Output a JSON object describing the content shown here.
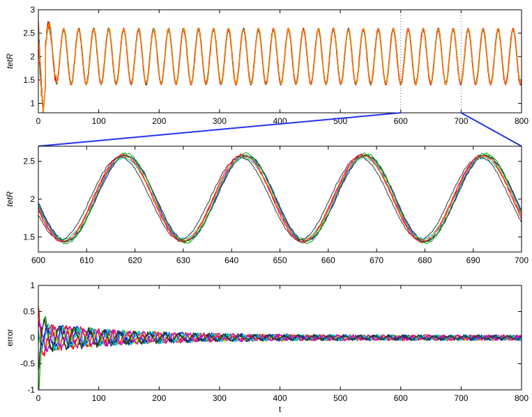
{
  "chart_data": [
    {
      "type": "line",
      "title": "",
      "xlabel": "",
      "ylabel": "tetR",
      "xlim": [
        0,
        800
      ],
      "ylim": [
        0.8,
        3
      ],
      "xticks": [
        "0",
        "100",
        "200",
        "300",
        "400",
        "500",
        "600",
        "700",
        "800"
      ],
      "yticks": [
        "1",
        "1.5",
        "2",
        "2.5",
        "3"
      ],
      "grid": false,
      "legend": "none",
      "description_of_series": "sustained oscillation, mean 2.0, amplitude ~0.58, period ~24.8, initial transient dip near t=0-10",
      "period": 24.8,
      "mean": 2.0,
      "amplitude": 0.58,
      "series_colors": [
        "#0000ff",
        "#00aa00",
        "#00cccc",
        "#cc00cc",
        "#cccc00",
        "#333333",
        "#ff0000",
        "#ff8800"
      ],
      "zoom_markers": [
        600,
        700
      ]
    },
    {
      "type": "line",
      "title": "",
      "xlabel": "",
      "ylabel": "tetR",
      "xlim": [
        600,
        700
      ],
      "ylim": [
        1.3,
        2.7
      ],
      "xticks": [
        "600",
        "610",
        "620",
        "630",
        "640",
        "650",
        "660",
        "670",
        "680",
        "690",
        "700"
      ],
      "yticks": [
        "1.5",
        "2",
        "2.5"
      ],
      "grid": false,
      "legend": "none",
      "peaks_t": [
        618,
        643,
        667,
        692
      ],
      "troughs_t": [
        605,
        630,
        655,
        680
      ],
      "peak_value": 2.57,
      "trough_value": 1.45,
      "series_colors": [
        "#0000ff",
        "#00aa00",
        "#00cccc",
        "#cc00cc",
        "#333333",
        "#ff0000",
        "#ff8800",
        "#008800"
      ]
    },
    {
      "type": "line",
      "title": "",
      "xlabel": "t",
      "ylabel": "error",
      "xlim": [
        0,
        800
      ],
      "ylim": [
        -1,
        1
      ],
      "xticks": [
        "0",
        "100",
        "200",
        "300",
        "400",
        "500",
        "600",
        "700",
        "800"
      ],
      "yticks": [
        "-1",
        "-0.5",
        "0",
        "0.5",
        "1"
      ],
      "grid": false,
      "legend": "none",
      "description_of_series": "damped error oscillations, initial spikes to ~0.55 and ~-0.95, decaying to noise of ~±0.05 after t=300",
      "series_colors": [
        "#ff0000",
        "#00aa00",
        "#0000ff",
        "#cccc00",
        "#00cccc",
        "#cc00cc",
        "#333333"
      ]
    }
  ]
}
